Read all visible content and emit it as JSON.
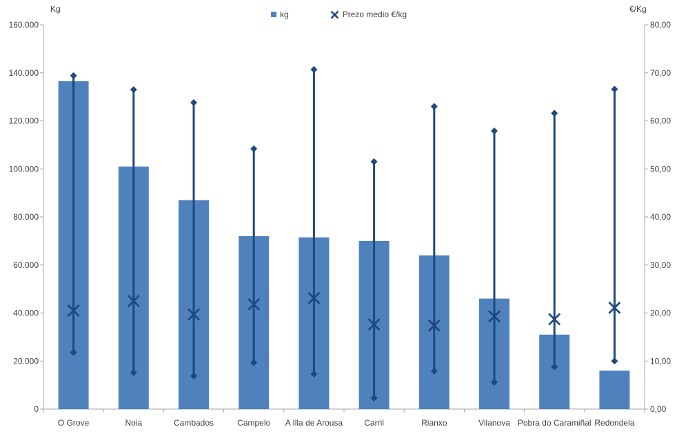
{
  "chart_data": {
    "type": "bar",
    "title": "",
    "categories": [
      "O Grove",
      "Noia",
      "Cambados",
      "Campelo",
      "A Illa de Arousa",
      "Carril",
      "Rianxo",
      "Vilanova",
      "Pobra do Caramiñal",
      "Redondela"
    ],
    "series": [
      {
        "name": "kg",
        "type": "bar",
        "axis": "left",
        "values": [
          136500,
          101000,
          87000,
          72000,
          71500,
          70000,
          64000,
          46000,
          31000,
          16000
        ]
      },
      {
        "name": "Prezo medio €/kg",
        "type": "scatter-x-with-highlow",
        "axis": "right",
        "mean": [
          20.5,
          22.5,
          19.7,
          21.8,
          23.1,
          17.6,
          17.4,
          19.3,
          18.7,
          21.1
        ],
        "high": [
          69.4,
          66.5,
          63.8,
          54.2,
          70.7,
          51.5,
          63.0,
          57.9,
          61.6,
          66.6
        ],
        "low": [
          11.8,
          7.6,
          6.9,
          9.7,
          7.3,
          2.3,
          7.9,
          5.6,
          8.8,
          10.0
        ]
      }
    ],
    "left_axis": {
      "title": "Kg",
      "min": 0,
      "max": 160000,
      "step": 20000,
      "tick_labels": [
        "0",
        "20.000",
        "40.000",
        "60.000",
        "80.000",
        "100.000",
        "120.000",
        "140.000",
        "160.000"
      ]
    },
    "right_axis": {
      "title": "€/Kg",
      "min": 0,
      "max": 80,
      "step": 10,
      "tick_labels": [
        "0,00",
        "10,00",
        "20,00",
        "30,00",
        "40,00",
        "50,00",
        "60,00",
        "70,00",
        "80,00"
      ]
    },
    "legend": [
      {
        "label": "kg",
        "marker": "square"
      },
      {
        "label": "Prezo medio €/kg",
        "marker": "x"
      }
    ],
    "colors": {
      "bar_fill": "#4F81BD",
      "marker_line": "#1F497D",
      "axis_line": "#A6A6A6",
      "tick_text": "#3F3F3F"
    },
    "layout_hints": {
      "grid": "off",
      "legend_position": "top-center",
      "secondary_axis": "right"
    }
  }
}
